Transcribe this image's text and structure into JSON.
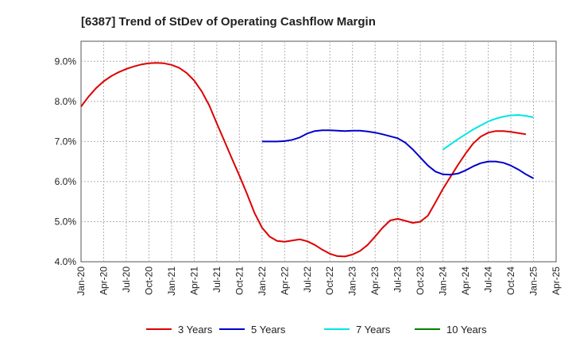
{
  "chart_data": {
    "type": "line",
    "title": "[6387]  Trend of StDev of Operating Cashflow Margin",
    "xlabel": "",
    "ylabel": "",
    "x_ticks": [
      "Jan-20",
      "Apr-20",
      "Jul-20",
      "Oct-20",
      "Jan-21",
      "Apr-21",
      "Jul-21",
      "Oct-21",
      "Jan-22",
      "Apr-22",
      "Jul-22",
      "Oct-22",
      "Jan-23",
      "Apr-23",
      "Jul-23",
      "Oct-23",
      "Jan-24",
      "Apr-24",
      "Jul-24",
      "Oct-24",
      "Jan-25",
      "Apr-25"
    ],
    "y_ticks": [
      "4.0%",
      "5.0%",
      "6.0%",
      "7.0%",
      "8.0%",
      "9.0%"
    ],
    "ylim": [
      4.0,
      9.5
    ],
    "grid": true,
    "legend_position": "bottom",
    "series": [
      {
        "name": "3 Years",
        "color": "#dd0000",
        "points": [
          [
            "Jan-20",
            7.87
          ],
          [
            "Feb-20",
            8.12
          ],
          [
            "Mar-20",
            8.33
          ],
          [
            "Apr-20",
            8.5
          ],
          [
            "May-20",
            8.63
          ],
          [
            "Jun-20",
            8.73
          ],
          [
            "Jul-20",
            8.81
          ],
          [
            "Aug-20",
            8.87
          ],
          [
            "Sep-20",
            8.92
          ],
          [
            "Oct-20",
            8.95
          ],
          [
            "Nov-20",
            8.96
          ],
          [
            "Dec-20",
            8.95
          ],
          [
            "Jan-21",
            8.91
          ],
          [
            "Feb-21",
            8.84
          ],
          [
            "Mar-21",
            8.71
          ],
          [
            "Apr-21",
            8.52
          ],
          [
            "May-21",
            8.25
          ],
          [
            "Jun-21",
            7.9
          ],
          [
            "Jul-21",
            7.45
          ],
          [
            "Aug-21",
            7.02
          ],
          [
            "Sep-21",
            6.58
          ],
          [
            "Oct-21",
            6.15
          ],
          [
            "Nov-21",
            5.7
          ],
          [
            "Dec-21",
            5.22
          ],
          [
            "Jan-22",
            4.85
          ],
          [
            "Feb-22",
            4.63
          ],
          [
            "Mar-22",
            4.52
          ],
          [
            "Apr-22",
            4.5
          ],
          [
            "May-22",
            4.53
          ],
          [
            "Jun-22",
            4.56
          ],
          [
            "Jul-22",
            4.51
          ],
          [
            "Aug-22",
            4.42
          ],
          [
            "Sep-22",
            4.3
          ],
          [
            "Oct-22",
            4.2
          ],
          [
            "Nov-22",
            4.14
          ],
          [
            "Dec-22",
            4.13
          ],
          [
            "Jan-23",
            4.18
          ],
          [
            "Feb-23",
            4.27
          ],
          [
            "Mar-23",
            4.42
          ],
          [
            "Apr-23",
            4.63
          ],
          [
            "May-23",
            4.85
          ],
          [
            "Jun-23",
            5.03
          ],
          [
            "Jul-23",
            5.07
          ],
          [
            "Aug-23",
            5.02
          ],
          [
            "Sep-23",
            4.97
          ],
          [
            "Oct-23",
            5.0
          ],
          [
            "Nov-23",
            5.15
          ],
          [
            "Dec-23",
            5.48
          ],
          [
            "Jan-24",
            5.82
          ],
          [
            "Feb-24",
            6.12
          ],
          [
            "Mar-24",
            6.42
          ],
          [
            "Apr-24",
            6.7
          ],
          [
            "May-24",
            6.95
          ],
          [
            "Jun-24",
            7.12
          ],
          [
            "Jul-24",
            7.22
          ],
          [
            "Aug-24",
            7.26
          ],
          [
            "Sep-24",
            7.26
          ],
          [
            "Oct-24",
            7.24
          ],
          [
            "Nov-24",
            7.21
          ],
          [
            "Dec-24",
            7.18
          ]
        ]
      },
      {
        "name": "5 Years",
        "color": "#0000cc",
        "points": [
          [
            "Jan-22",
            7.0
          ],
          [
            "Feb-22",
            7.0
          ],
          [
            "Mar-22",
            7.0
          ],
          [
            "Apr-22",
            7.01
          ],
          [
            "May-22",
            7.04
          ],
          [
            "Jun-22",
            7.1
          ],
          [
            "Jul-22",
            7.2
          ],
          [
            "Aug-22",
            7.26
          ],
          [
            "Sep-22",
            7.28
          ],
          [
            "Oct-22",
            7.28
          ],
          [
            "Nov-22",
            7.27
          ],
          [
            "Dec-22",
            7.26
          ],
          [
            "Jan-23",
            7.27
          ],
          [
            "Feb-23",
            7.27
          ],
          [
            "Mar-23",
            7.25
          ],
          [
            "Apr-23",
            7.22
          ],
          [
            "May-23",
            7.18
          ],
          [
            "Jun-23",
            7.13
          ],
          [
            "Jul-23",
            7.08
          ],
          [
            "Aug-23",
            6.97
          ],
          [
            "Sep-23",
            6.8
          ],
          [
            "Oct-23",
            6.6
          ],
          [
            "Nov-23",
            6.4
          ],
          [
            "Dec-23",
            6.25
          ],
          [
            "Jan-24",
            6.18
          ],
          [
            "Feb-24",
            6.17
          ],
          [
            "Mar-24",
            6.2
          ],
          [
            "Apr-24",
            6.28
          ],
          [
            "May-24",
            6.38
          ],
          [
            "Jun-24",
            6.46
          ],
          [
            "Jul-24",
            6.5
          ],
          [
            "Aug-24",
            6.5
          ],
          [
            "Sep-24",
            6.47
          ],
          [
            "Oct-24",
            6.4
          ],
          [
            "Nov-24",
            6.3
          ],
          [
            "Dec-24",
            6.18
          ],
          [
            "Jan-25",
            6.08
          ]
        ]
      },
      {
        "name": "7 Years",
        "color": "#00e5e5",
        "points": [
          [
            "Jan-24",
            6.8
          ],
          [
            "Feb-24",
            6.93
          ],
          [
            "Mar-24",
            7.06
          ],
          [
            "Apr-24",
            7.18
          ],
          [
            "May-24",
            7.3
          ],
          [
            "Jun-24",
            7.4
          ],
          [
            "Jul-24",
            7.5
          ],
          [
            "Aug-24",
            7.57
          ],
          [
            "Sep-24",
            7.62
          ],
          [
            "Oct-24",
            7.65
          ],
          [
            "Nov-24",
            7.66
          ],
          [
            "Dec-24",
            7.64
          ],
          [
            "Jan-25",
            7.6
          ]
        ]
      },
      {
        "name": "10 Years",
        "color": "#008000",
        "points": []
      }
    ]
  }
}
